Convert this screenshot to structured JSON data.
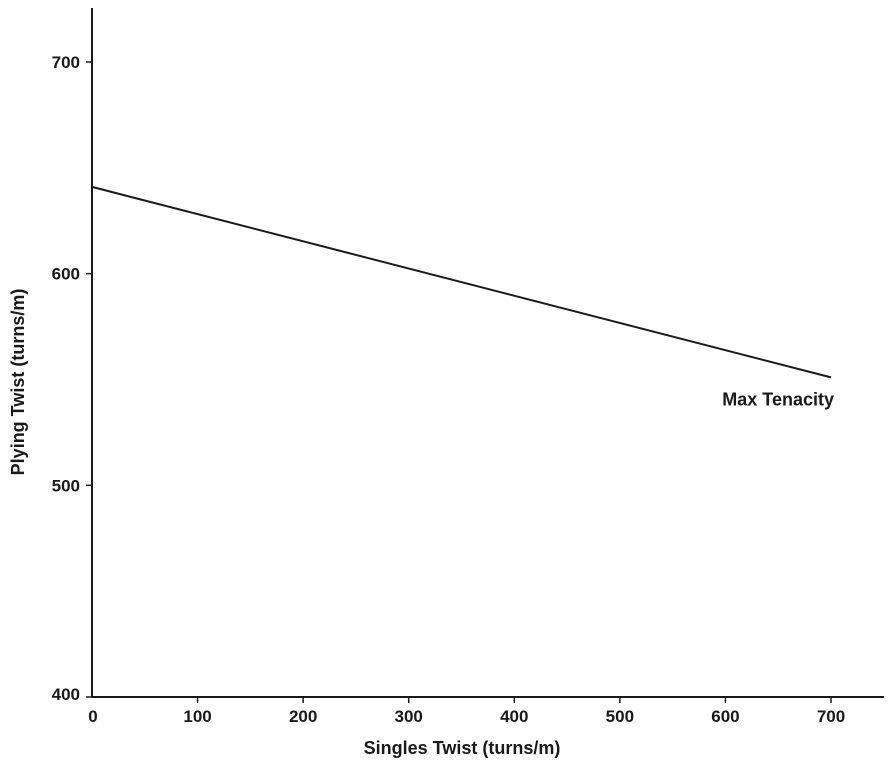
{
  "chart_data": {
    "type": "line",
    "title": "",
    "xlabel": "Singles Twist (turns/m)",
    "ylabel": "Plying Twist (turns/m)",
    "xlim": [
      0,
      750
    ],
    "ylim": [
      400,
      725
    ],
    "xticks": [
      "0",
      "100",
      "200",
      "300",
      "400",
      "500",
      "600",
      "700"
    ],
    "yticks": [
      "400",
      "500",
      "600",
      "700"
    ],
    "grid": false,
    "series": [
      {
        "name": "Max Tenacity",
        "x": [
          0,
          700
        ],
        "y": [
          641,
          551
        ]
      }
    ]
  }
}
